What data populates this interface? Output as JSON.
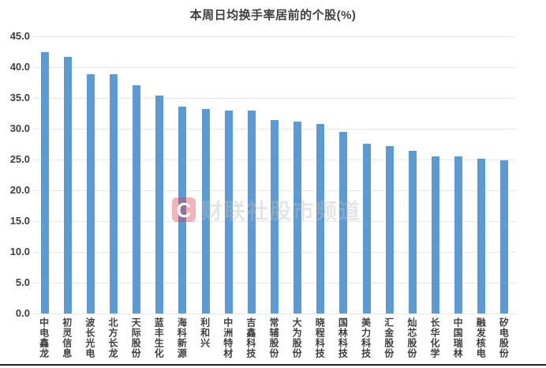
{
  "chart_data": {
    "type": "bar",
    "title": "本周日均换手率居前的个股(%)",
    "categories": [
      "中电鑫龙",
      "初灵信息",
      "波长光电",
      "北方长龙",
      "天际股份",
      "蓝丰生化",
      "海科新源",
      "利和兴",
      "中洲特材",
      "吉鑫科技",
      "常辅股份",
      "大为股份",
      "晓程科技",
      "国林科技",
      "美力科技",
      "汇金股份",
      "灿芯股份",
      "长华化学",
      "中国瑞林",
      "融发核电",
      "矽电股份"
    ],
    "values": [
      42.4,
      41.7,
      38.9,
      38.8,
      37.0,
      35.4,
      33.6,
      33.2,
      32.9,
      32.9,
      31.4,
      31.1,
      30.8,
      29.5,
      27.6,
      27.2,
      26.4,
      25.5,
      25.5,
      25.1,
      24.9
    ],
    "xlabel": "",
    "ylabel": "",
    "ylim": [
      0,
      45
    ],
    "yticks": [
      "0.0",
      "5.0",
      "10.0",
      "15.0",
      "20.0",
      "25.0",
      "30.0",
      "35.0",
      "40.0",
      "45.0"
    ],
    "grid": true,
    "legend_position": "none",
    "bar_color": "#5b9bd5",
    "axis_text_color": "#3f3f3f",
    "gridline_color": "#e8e8e8"
  },
  "watermark": {
    "logo_glyph": "C",
    "text": "财联社股市频道",
    "logo_color": "#e03a42",
    "text_color": "#bebebe"
  }
}
